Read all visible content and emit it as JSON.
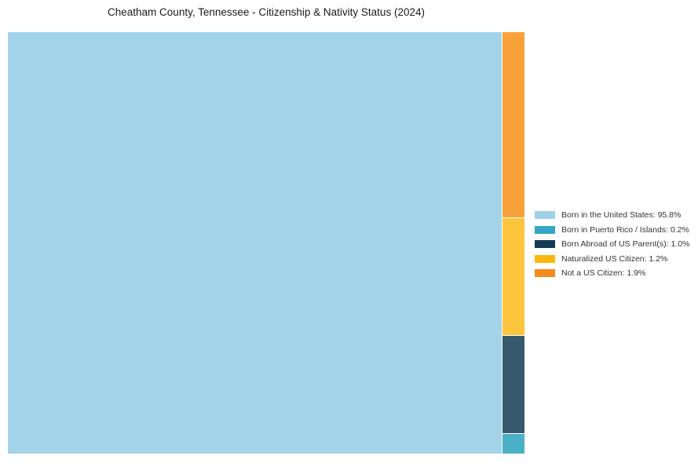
{
  "chart_data": {
    "type": "treemap",
    "title": "Cheatham County, Tennessee - Citizenship & Nativity Status (2024)",
    "unit": "%",
    "legend_position": "right",
    "background_color": "#ffffff",
    "categories": [
      "Born in the United States",
      "Born in Puerto Rico / Islands",
      "Born Abroad of US Parent(s)",
      "Naturalized US Citizen",
      "Not a US Citizen"
    ],
    "values": [
      95.8,
      0.2,
      1.0,
      1.2,
      1.9
    ],
    "main_segment": {
      "id": "born-in-us",
      "label": "Born in the United States",
      "value": 95.8,
      "color": "#A3D3E8"
    },
    "column_segments": [
      {
        "id": "not-a-us-citizen",
        "label": "Not a US Citizen",
        "value": 1.9,
        "color": "#F9A139"
      },
      {
        "id": "naturalized-us-citizen",
        "label": "Naturalized US Citizen",
        "value": 1.2,
        "color": "#FDC53D"
      },
      {
        "id": "born-abroad-us-parents",
        "label": "Born Abroad of US Parent(s)",
        "value": 1.0,
        "color": "#36596C"
      },
      {
        "id": "born-puerto-rico-islands",
        "label": "Born in Puerto Rico / Islands",
        "value": 0.2,
        "color": "#4BB0C5"
      }
    ],
    "legend": [
      {
        "id": "born-in-us",
        "label": "Born in the United States: 95.8%",
        "color": "#A0D1E6"
      },
      {
        "id": "born-puerto-rico-islands",
        "label": "Born in Puerto Rico / Islands: 0.2%",
        "color": "#35A7C2"
      },
      {
        "id": "born-abroad-us-parents",
        "label": "Born Abroad of US Parent(s): 1.0%",
        "color": "#123B54"
      },
      {
        "id": "naturalized-us-citizen",
        "label": "Naturalized US Citizen: 1.2%",
        "color": "#FDB70E"
      },
      {
        "id": "not-a-us-citizen",
        "label": "Not a US Citizen: 1.9%",
        "color": "#F68A1F"
      }
    ]
  }
}
